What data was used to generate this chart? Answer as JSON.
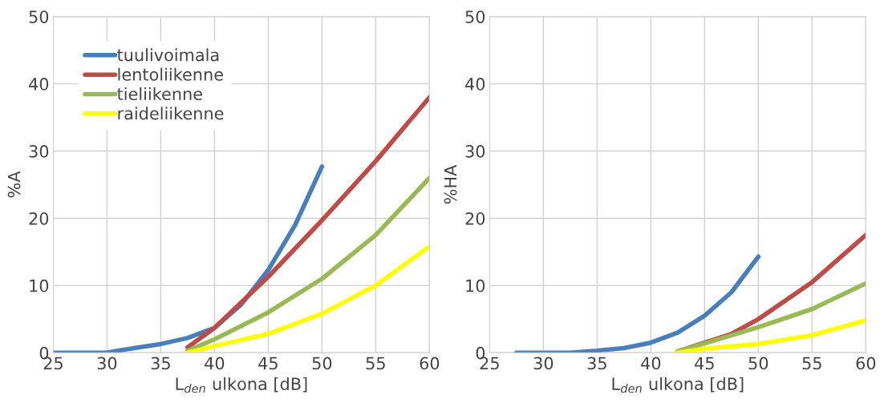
{
  "chart_data": [
    {
      "type": "line",
      "xlabel": "L$_{den}$ ulkona [dB]",
      "ylabel": "%A",
      "xlim": [
        25,
        60
      ],
      "xticks": [
        25,
        30,
        35,
        40,
        45,
        50,
        55,
        60
      ],
      "ylim": [
        0,
        50
      ],
      "yticks": [
        0,
        10,
        20,
        30,
        40,
        50
      ],
      "grid": true,
      "legend": "top left",
      "series": [
        {
          "name": "tuulivoimala",
          "color": "#4a7ebb",
          "x": [
            25,
            30,
            31,
            33,
            35,
            37.5,
            40,
            42.5,
            45,
            47.5,
            50
          ],
          "values": [
            0,
            0,
            0.3,
            0.8,
            1.3,
            2.2,
            3.7,
            7.2,
            12.3,
            19,
            27.7
          ]
        },
        {
          "name": "lentoliikenne",
          "color": "#be4b48",
          "x": [
            37.5,
            40,
            45,
            50,
            55,
            60
          ],
          "values": [
            0.8,
            3.7,
            11.3,
            19.7,
            28.5,
            38
          ]
        },
        {
          "name": "tieliikenne",
          "color": "#98b954",
          "x": [
            37.5,
            40,
            45,
            50,
            55,
            60
          ],
          "values": [
            0.3,
            2,
            6,
            11,
            17.5,
            26
          ]
        },
        {
          "name": "raideliikenne",
          "color": "#ffff00",
          "x": [
            37.5,
            40,
            45,
            50,
            55,
            60
          ],
          "values": [
            0,
            1,
            2.8,
            5.8,
            10,
            15.8
          ]
        }
      ]
    },
    {
      "type": "line",
      "xlabel": "L$_{den}$ ulkona [dB]",
      "ylabel": "%HA",
      "xlim": [
        25,
        60
      ],
      "xticks": [
        25,
        30,
        35,
        40,
        45,
        50,
        55,
        60
      ],
      "ylim": [
        0,
        50
      ],
      "yticks": [
        0,
        10,
        20,
        30,
        40,
        50
      ],
      "grid": true,
      "series": [
        {
          "color": "#4a7ebb",
          "x": [
            27.5,
            32.5,
            35,
            37.5,
            40,
            42.5,
            45,
            47.5,
            50
          ],
          "values": [
            0,
            0,
            0.3,
            0.7,
            1.5,
            3,
            5.5,
            9,
            14.3
          ]
        },
        {
          "color": "#be4b48",
          "x": [
            42.5,
            45,
            47.5,
            50,
            55,
            60
          ],
          "values": [
            0.2,
            1.5,
            2.8,
            5,
            10.5,
            17.5
          ]
        },
        {
          "color": "#98b954",
          "x": [
            42.5,
            45,
            50,
            55,
            60
          ],
          "values": [
            0.2,
            1.4,
            3.8,
            6.5,
            10.3
          ]
        },
        {
          "color": "#ffff00",
          "x": [
            42.5,
            45,
            50,
            55,
            60
          ],
          "values": [
            0,
            0.6,
            1.3,
            2.6,
            4.8
          ]
        }
      ]
    }
  ]
}
